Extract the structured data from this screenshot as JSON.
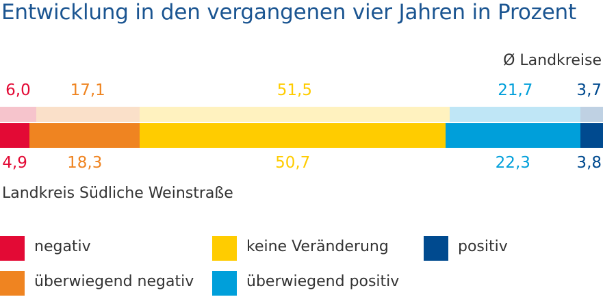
{
  "title": "Entwicklung in den vergangenen vier Jahren in Prozent",
  "colors": {
    "title": "#1b5591",
    "categories": [
      "#e30a35",
      "#ef8421",
      "#ffcc00",
      "#009fda",
      "#004a8f"
    ],
    "light": [
      "#f6c4cc",
      "#fae0c9",
      "#fff2bf",
      "#bfe6f6",
      "#bfd1e3"
    ]
  },
  "chart_data": {
    "type": "bar",
    "orientation": "horizontal-stacked-100",
    "categories": [
      "negativ",
      "überwiegend negativ",
      "keine Veränderung",
      "überwiegend positiv",
      "positiv"
    ],
    "series": [
      {
        "name": "Ø Landkreise",
        "values": [
          6.0,
          17.1,
          51.5,
          21.7,
          3.7
        ],
        "labels": [
          "6,0",
          "17,1",
          "51,5",
          "21,7",
          "3,7"
        ]
      },
      {
        "name": "Landkreis Südliche Weinstraße",
        "values": [
          4.9,
          18.3,
          50.7,
          22.3,
          3.8
        ],
        "labels": [
          "4,9",
          "18,3",
          "50,7",
          "22,3",
          "3,8"
        ]
      }
    ],
    "legend_placement": "bottom"
  },
  "avg_label": "Ø Landkreise",
  "district_label": "Landkreis Südliche Weinstraße",
  "legend": [
    {
      "label": "negativ",
      "key": 0
    },
    {
      "label": "keine Veränderung",
      "key": 2
    },
    {
      "label": "positiv",
      "key": 4
    },
    {
      "label": "überwiegend negativ",
      "key": 1
    },
    {
      "label": "überwiegend positiv",
      "key": 3
    }
  ]
}
